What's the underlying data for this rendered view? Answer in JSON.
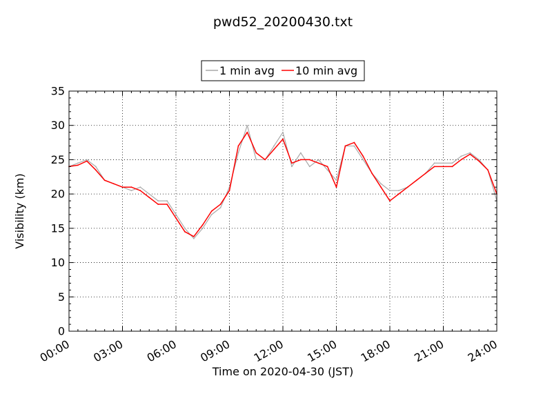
{
  "chart_data": {
    "type": "line",
    "title": "pwd52_20200430.txt",
    "xlabel": "Time on 2020-04-30 (JST)",
    "ylabel": "Visibility (km)",
    "xlim": [
      "00:00",
      "24:00"
    ],
    "ylim": [
      0,
      35
    ],
    "x_ticks": [
      "00:00",
      "03:00",
      "06:00",
      "09:00",
      "12:00",
      "15:00",
      "18:00",
      "21:00",
      "24:00"
    ],
    "y_ticks": [
      "0",
      "5",
      "10",
      "15",
      "20",
      "25",
      "30",
      "35"
    ],
    "grid": true,
    "legend_position": "top-center",
    "x": [
      "00:00",
      "00:30",
      "01:00",
      "01:30",
      "02:00",
      "02:30",
      "03:00",
      "03:30",
      "04:00",
      "04:30",
      "05:00",
      "05:30",
      "06:00",
      "06:30",
      "07:00",
      "07:30",
      "08:00",
      "08:30",
      "09:00",
      "09:30",
      "10:00",
      "10:30",
      "11:00",
      "11:30",
      "12:00",
      "12:30",
      "13:00",
      "13:30",
      "14:00",
      "14:30",
      "15:00",
      "15:30",
      "16:00",
      "16:30",
      "17:00",
      "17:30",
      "18:00",
      "18:30",
      "19:00",
      "19:30",
      "20:00",
      "20:30",
      "21:00",
      "21:30",
      "22:00",
      "22:30",
      "23:00",
      "23:30",
      "24:00"
    ],
    "series": [
      {
        "name": "1 min avg",
        "color": "#a9a9a9",
        "values": [
          24.0,
          24.5,
          25.0,
          24.0,
          22.0,
          21.5,
          21.0,
          20.5,
          21.0,
          20.0,
          19.0,
          19.0,
          17.0,
          15.0,
          13.5,
          15.0,
          17.0,
          18.0,
          21.0,
          26.0,
          30.0,
          25.0,
          25.0,
          27.0,
          29.0,
          24.0,
          26.0,
          24.0,
          25.0,
          23.5,
          22.0,
          27.0,
          27.0,
          25.0,
          23.0,
          21.5,
          20.5,
          20.5,
          21.0,
          22.0,
          23.0,
          24.5,
          24.5,
          24.5,
          25.5,
          26.0,
          25.0,
          23.5,
          19.0
        ]
      },
      {
        "name": "10 min avg",
        "color": "#ff0000",
        "values": [
          24.0,
          24.2,
          24.8,
          23.5,
          22.0,
          21.5,
          21.0,
          21.0,
          20.5,
          19.5,
          18.5,
          18.5,
          16.5,
          14.5,
          13.8,
          15.5,
          17.5,
          18.5,
          20.5,
          27.0,
          29.0,
          26.0,
          25.0,
          26.5,
          28.0,
          24.5,
          25.0,
          25.0,
          24.5,
          24.0,
          21.0,
          27.0,
          27.5,
          25.5,
          23.0,
          21.0,
          19.0,
          20.0,
          21.0,
          22.0,
          23.0,
          24.0,
          24.0,
          24.0,
          25.0,
          25.8,
          24.8,
          23.5,
          20.0
        ]
      }
    ]
  }
}
